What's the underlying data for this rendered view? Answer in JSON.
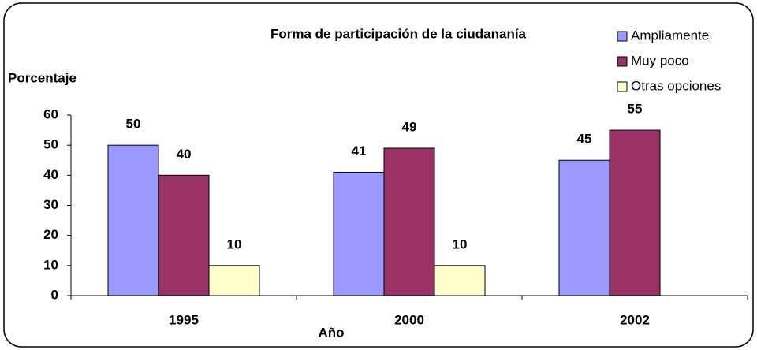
{
  "chart_data": {
    "type": "bar",
    "title": "Forma de participación de la ciudananía",
    "y_label": "Porcentaje",
    "x_label": "Año",
    "categories": [
      "1995",
      "2000",
      "2002"
    ],
    "series": [
      {
        "name": "Ampliamente",
        "color": "#9999ff",
        "values": [
          50,
          41,
          45
        ]
      },
      {
        "name": "Muy poco",
        "color": "#993366",
        "values": [
          40,
          49,
          55
        ]
      },
      {
        "name": "Otras opciones",
        "color": "#ffffcc",
        "values": [
          10,
          10,
          null
        ]
      }
    ],
    "ylim": [
      0,
      60
    ],
    "yticks": [
      0,
      10,
      20,
      30,
      40,
      50,
      60
    ],
    "grid": false,
    "legend": "top-right"
  }
}
